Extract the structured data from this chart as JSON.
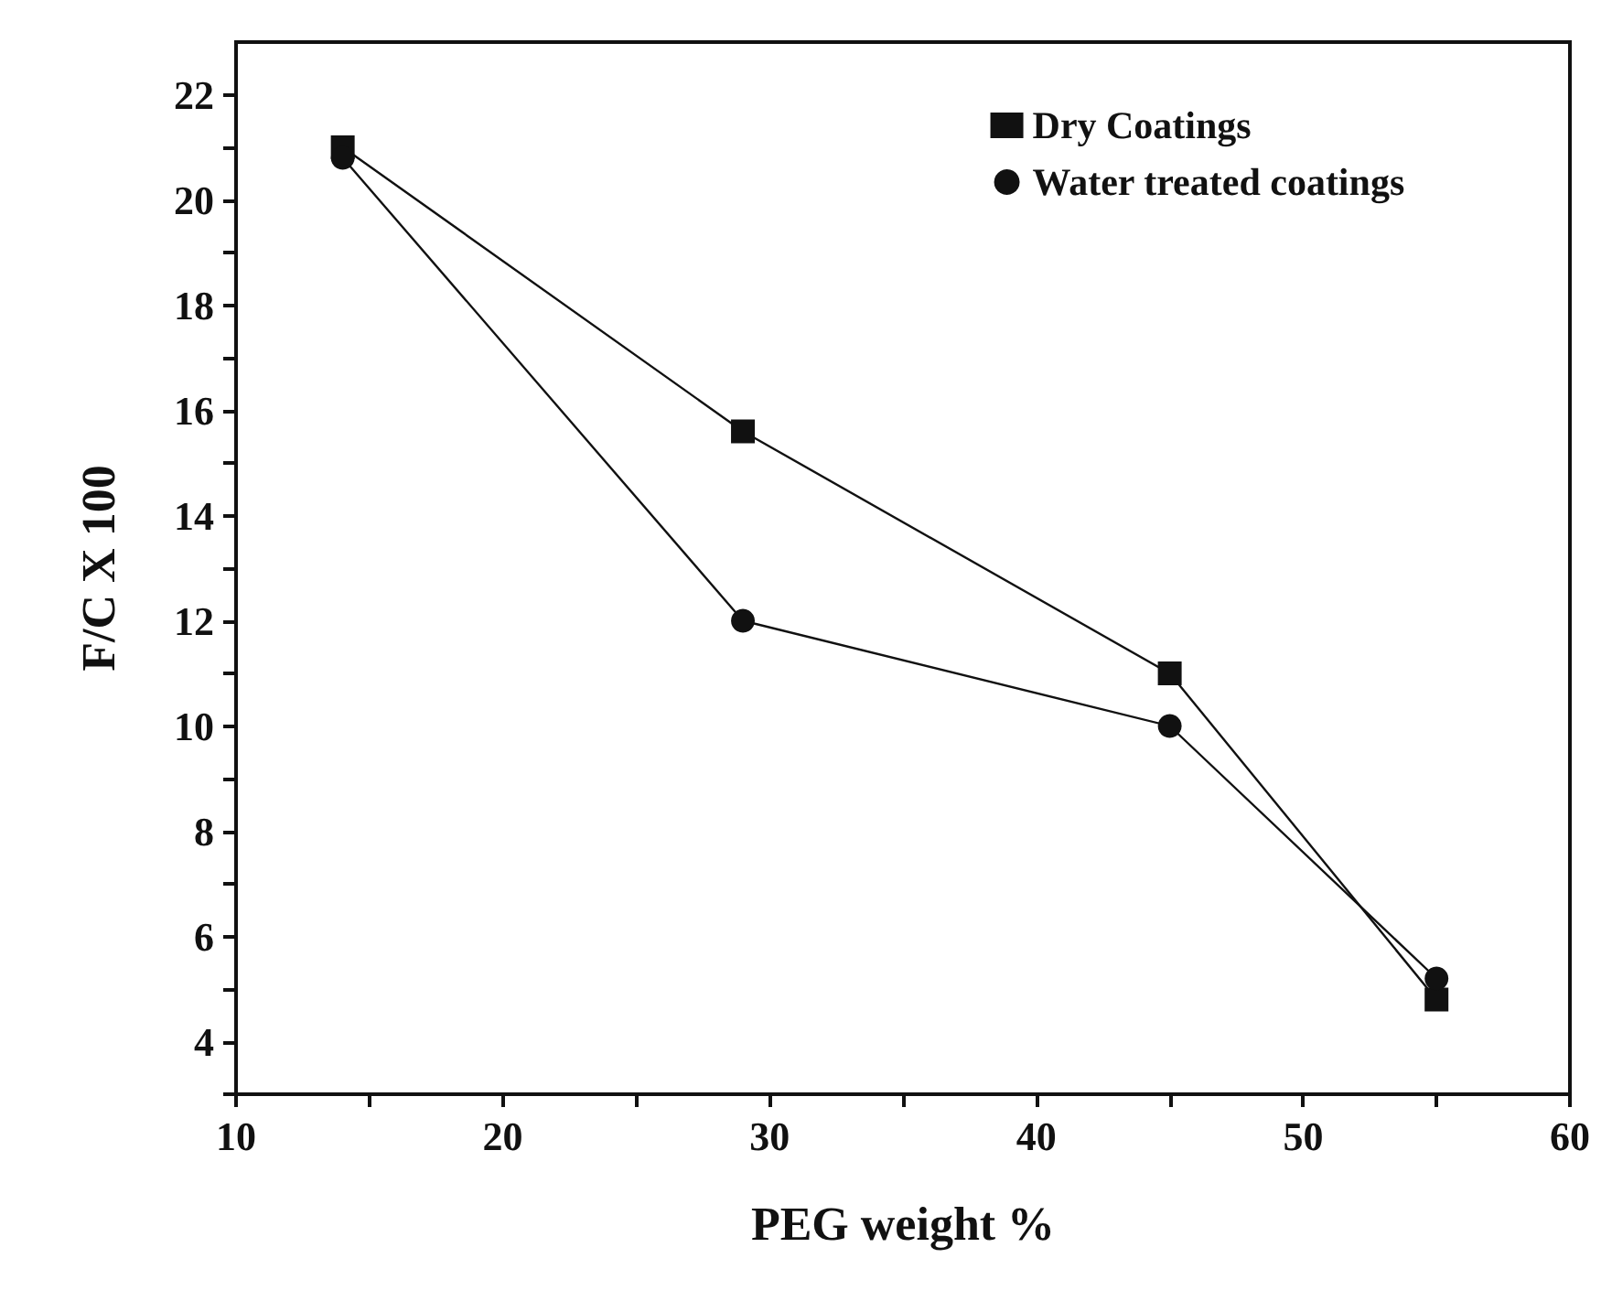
{
  "chart_data": {
    "type": "line",
    "xlabel": "PEG weight %",
    "ylabel": "F/C X 100",
    "xlim": [
      10,
      60
    ],
    "xticks": [
      10,
      {
        "value": 15,
        "label": null
      },
      20,
      {
        "value": 25,
        "label": null
      },
      30,
      {
        "value": 35,
        "label": null
      },
      40,
      {
        "value": 45,
        "label": null
      },
      50,
      {
        "value": 55,
        "label": null
      },
      60
    ],
    "ylim": [
      3,
      23
    ],
    "yticks": [
      {
        "value": 3,
        "label": null
      },
      4,
      {
        "value": 5,
        "label": null
      },
      6,
      {
        "value": 7,
        "label": null
      },
      8,
      {
        "value": 9,
        "label": null
      },
      10,
      {
        "value": 11,
        "label": null
      },
      12,
      {
        "value": 13,
        "label": null
      },
      14,
      {
        "value": 15,
        "label": null
      },
      16,
      {
        "value": 17,
        "label": null
      },
      18,
      {
        "value": 19,
        "label": null
      },
      20,
      {
        "value": 21,
        "label": null
      },
      22
    ],
    "grid": false,
    "legend": "top right",
    "line_style": "solid",
    "x": [
      14,
      29,
      45,
      55
    ],
    "series": [
      {
        "name": "Dry Coatings",
        "color": "#111111",
        "marker": "square",
        "values": [
          21,
          15.6,
          11,
          4.8
        ]
      },
      {
        "name": "Water treated coatings",
        "color": "#111111",
        "marker": "circle",
        "values": [
          20.8,
          12,
          10,
          5.2
        ]
      }
    ]
  }
}
